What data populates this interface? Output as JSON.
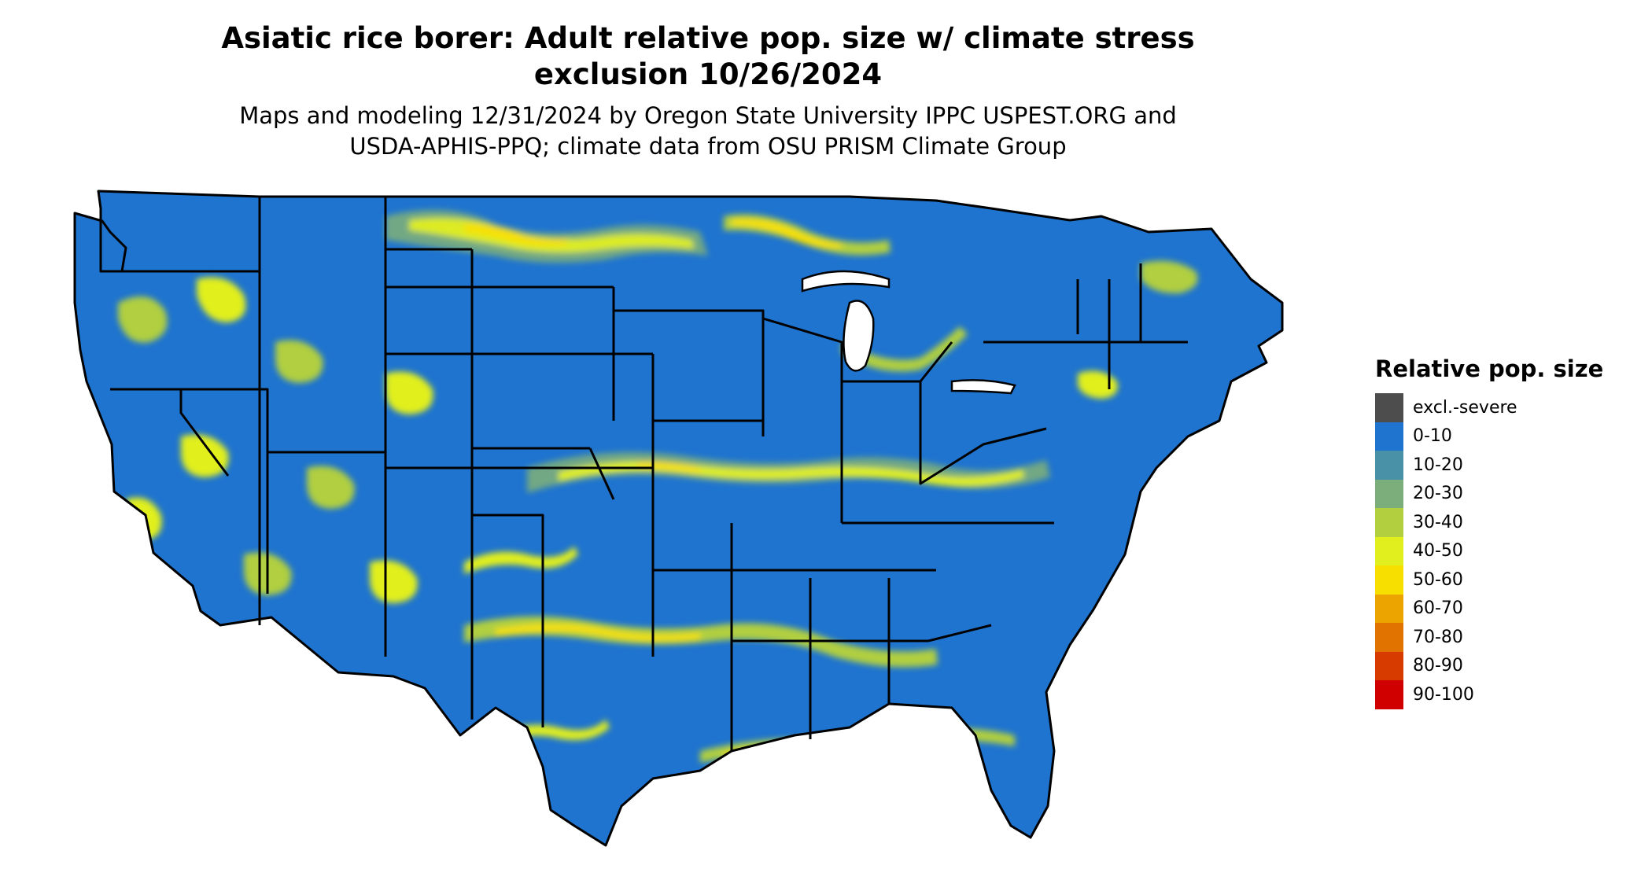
{
  "title_line1": "Asiatic rice borer: Adult relative pop. size w/ climate stress",
  "title_line2": "exclusion 10/26/2024",
  "subtitle_line1": "Maps and modeling 12/31/2024 by Oregon State University IPPC USPEST.ORG and",
  "subtitle_line2": "USDA-APHIS-PPQ; climate data from OSU PRISM Climate Group",
  "legend": {
    "title": "Relative pop. size",
    "items": [
      {
        "label": "excl.-severe",
        "color": "#4d4d4d"
      },
      {
        "label": "0-10",
        "color": "#1f74cf"
      },
      {
        "label": "10-20",
        "color": "#4891a6"
      },
      {
        "label": "20-30",
        "color": "#7cae7c"
      },
      {
        "label": "30-40",
        "color": "#b1cf3f"
      },
      {
        "label": "40-50",
        "color": "#e1ef1e"
      },
      {
        "label": "50-60",
        "color": "#f7e000"
      },
      {
        "label": "60-70",
        "color": "#eca400"
      },
      {
        "label": "70-80",
        "color": "#e17300"
      },
      {
        "label": "80-90",
        "color": "#d83b00"
      },
      {
        "label": "90-100",
        "color": "#d00000"
      }
    ]
  },
  "map": {
    "base_color": "#1f74cf",
    "border_color": "#000000",
    "hotspot_colors": [
      "#7cae7c",
      "#b1cf3f",
      "#e1ef1e",
      "#f7e000"
    ]
  }
}
